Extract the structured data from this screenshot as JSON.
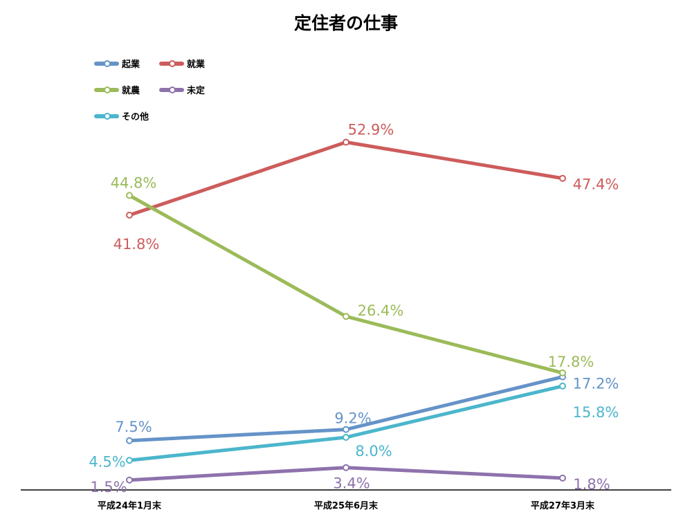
{
  "chart_data": {
    "type": "line",
    "title": "定住者の仕事",
    "categories": [
      "平成24年1月末",
      "平成25年6月末",
      "平成27年3月末"
    ],
    "ylim": [
      0,
      60
    ],
    "grid": false,
    "legend_position": "top-left",
    "series": [
      {
        "name": "起業",
        "color": "#6593c8",
        "values": [
          7.5,
          9.2,
          17.2
        ],
        "labels": [
          "7.5%",
          "9.2%",
          "17.2%"
        ]
      },
      {
        "name": "就業",
        "color": "#cd5c5c",
        "values": [
          41.8,
          52.9,
          47.4
        ],
        "labels": [
          "41.8%",
          "52.9%",
          "47.4%"
        ]
      },
      {
        "name": "就農",
        "color": "#9bbb59",
        "values": [
          44.8,
          26.4,
          17.8
        ],
        "labels": [
          "44.8%",
          "26.4%",
          "17.8%"
        ]
      },
      {
        "name": "未定",
        "color": "#8e72ac",
        "values": [
          1.5,
          3.4,
          1.8
        ],
        "labels": [
          "1.5%",
          "3.4%",
          "1.8%"
        ]
      },
      {
        "name": "その他",
        "color": "#4bb6cc",
        "values": [
          4.5,
          8.0,
          15.8
        ],
        "labels": [
          "4.5%",
          "8.0%",
          "15.8%"
        ]
      }
    ]
  }
}
